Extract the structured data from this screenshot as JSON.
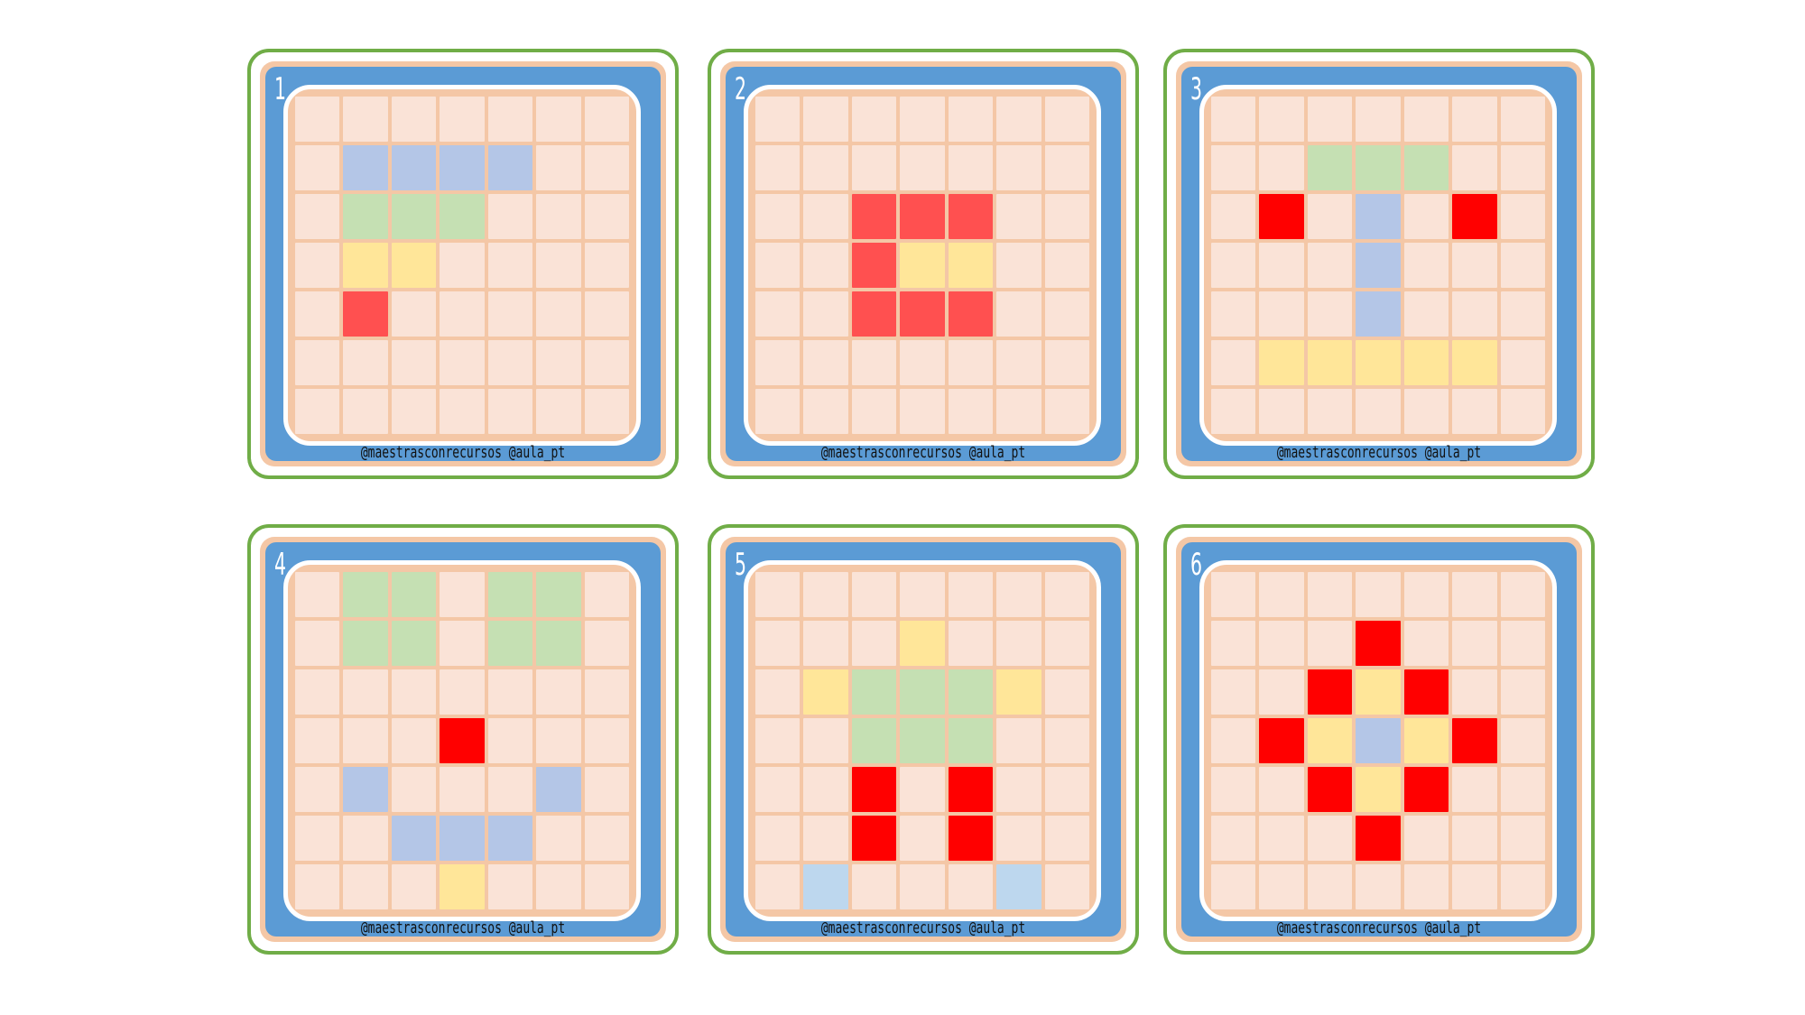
{
  "colors": {
    "empty": "#fae3d7",
    "blue": "#b4c6e7",
    "lightblue": "#bdd7ee",
    "green": "#c5e0b3",
    "yellow": "#ffe699",
    "coral": "#ff5050",
    "red": "#ff0000"
  },
  "credit": "@maestrasconrecursos   @aula_pt",
  "cards": [
    {
      "number": "1",
      "grid": [
        ".......",
        ".BBBB..",
        ".GGG...",
        ".YY....",
        ".C.....",
        ".......",
        "......."
      ]
    },
    {
      "number": "2",
      "grid": [
        ".......",
        ".......",
        "..CCC..",
        "..CYY..",
        "..CCC..",
        ".......",
        "......."
      ]
    },
    {
      "number": "3",
      "grid": [
        ".......",
        "..GGG..",
        ".R.B.R.",
        "...B...",
        "...B...",
        ".YYYYY.",
        "......."
      ]
    },
    {
      "number": "4",
      "grid": [
        ".GG.GG.",
        ".GG.GG.",
        ".......",
        "...R...",
        ".B...B.",
        "..BBB..",
        "...Y..."
      ]
    },
    {
      "number": "5",
      "grid": [
        ".......",
        "...Y...",
        ".YGGGY.",
        "..GGG..",
        "..R.R..",
        "..R.R..",
        ".L...L."
      ]
    },
    {
      "number": "6",
      "grid": [
        ".......",
        "...R...",
        "..RYR..",
        ".RYBYR.",
        "..RYR..",
        "...R...",
        "......."
      ]
    }
  ]
}
